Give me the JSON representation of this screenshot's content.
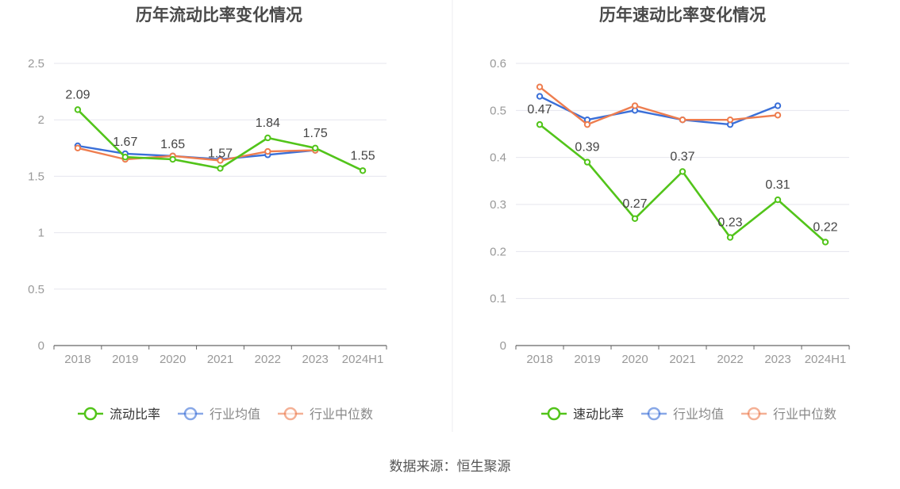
{
  "source": "数据来源：恒生聚源",
  "colors": {
    "main": "#52c41a",
    "avg": "#3a6fd8",
    "median": "#ee7d4f",
    "grid": "#e6e6ee",
    "axis": "#666666"
  },
  "chart_data": [
    {
      "type": "line",
      "title": "历年流动比率变化情况",
      "categories": [
        "2018",
        "2019",
        "2020",
        "2021",
        "2022",
        "2023",
        "2024H1"
      ],
      "ylim": [
        0,
        2.5
      ],
      "yticks": [
        "0",
        "0.5",
        "1",
        "1.5",
        "2",
        "2.5"
      ],
      "legend_position": "bottom",
      "series": [
        {
          "name": "流动比率",
          "values": [
            2.09,
            1.67,
            1.65,
            1.57,
            1.84,
            1.75,
            1.55
          ],
          "labels": [
            "2.09",
            "1.67",
            "1.65",
            "1.57",
            "1.84",
            "1.75",
            "1.55"
          ]
        },
        {
          "name": "行业均值",
          "values": [
            1.77,
            1.7,
            1.68,
            1.65,
            1.69,
            1.73,
            null
          ]
        },
        {
          "name": "行业中位数",
          "values": [
            1.75,
            1.65,
            1.68,
            1.64,
            1.72,
            1.73,
            null
          ]
        }
      ]
    },
    {
      "type": "line",
      "title": "历年速动比率变化情况",
      "categories": [
        "2018",
        "2019",
        "2020",
        "2021",
        "2022",
        "2023",
        "2024H1"
      ],
      "ylim": [
        0,
        0.6
      ],
      "yticks": [
        "0",
        "0.1",
        "0.2",
        "0.3",
        "0.4",
        "0.5",
        "0.6"
      ],
      "legend_position": "bottom",
      "series": [
        {
          "name": "速动比率",
          "values": [
            0.47,
            0.39,
            0.27,
            0.37,
            0.23,
            0.31,
            0.22
          ],
          "labels": [
            "0.47",
            "0.39",
            "0.27",
            "0.37",
            "0.23",
            "0.31",
            "0.22"
          ]
        },
        {
          "name": "行业均值",
          "values": [
            0.53,
            0.48,
            0.5,
            0.48,
            0.47,
            0.51,
            null
          ]
        },
        {
          "name": "行业中位数",
          "values": [
            0.55,
            0.47,
            0.51,
            0.48,
            0.48,
            0.49,
            null
          ]
        }
      ]
    }
  ]
}
